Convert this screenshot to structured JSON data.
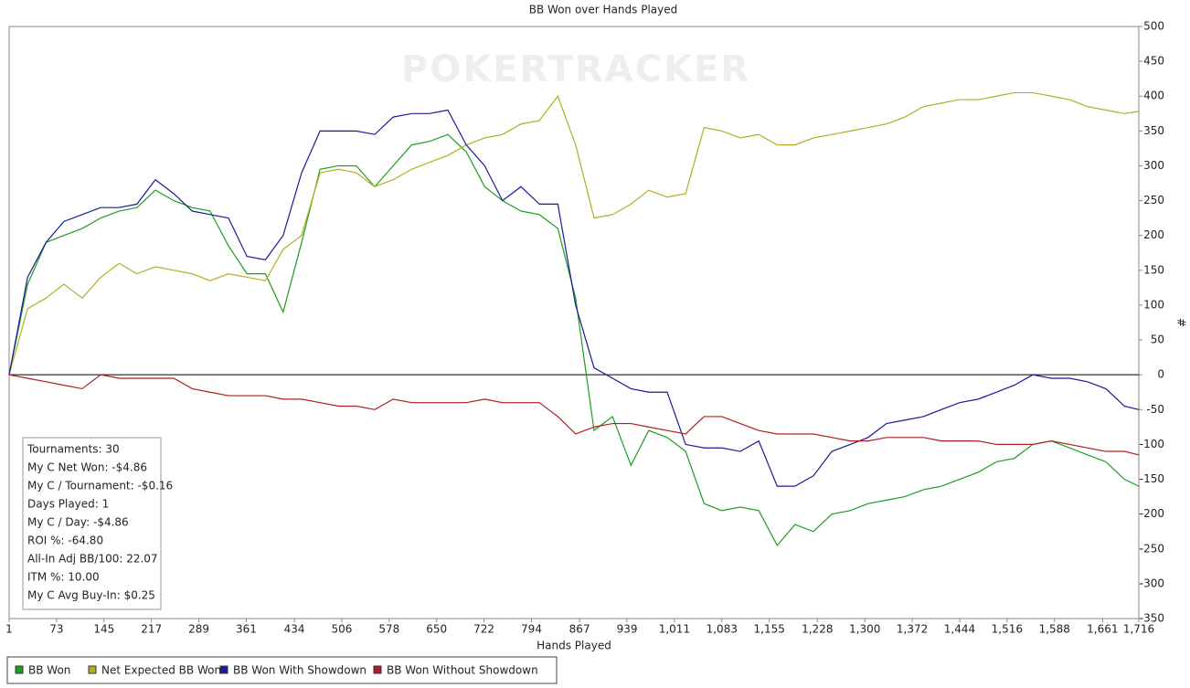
{
  "chart_data": {
    "type": "line",
    "title": "BB Won over Hands Played",
    "watermark": "POKERTRACKER",
    "x_label": "Hands Played",
    "y_label": "#",
    "xlim": [
      1,
      1716
    ],
    "ylim": [
      -350,
      500
    ],
    "xticks": [
      1,
      73,
      145,
      217,
      289,
      361,
      434,
      506,
      578,
      650,
      722,
      794,
      867,
      939,
      {
        "value": 1011,
        "label": "1,011"
      },
      {
        "value": 1083,
        "label": "1,083"
      },
      {
        "value": 1155,
        "label": "1,155"
      },
      {
        "value": 1228,
        "label": "1,228"
      },
      {
        "value": 1300,
        "label": "1,300"
      },
      {
        "value": 1372,
        "label": "1,372"
      },
      {
        "value": 1444,
        "label": "1,444"
      },
      {
        "value": 1516,
        "label": "1,516"
      },
      {
        "value": 1588,
        "label": "1,588"
      },
      {
        "value": 1661,
        "label": "1,661"
      },
      {
        "value": 1716,
        "label": "1,716"
      }
    ],
    "yticks": [
      -350,
      -300,
      -250,
      -200,
      -150,
      -100,
      -50,
      0,
      50,
      100,
      150,
      200,
      250,
      300,
      350,
      400,
      450,
      500
    ],
    "grid": false,
    "x": [
      1,
      29,
      57,
      84,
      112,
      140,
      168,
      195,
      223,
      251,
      279,
      306,
      334,
      362,
      390,
      417,
      445,
      473,
      501,
      528,
      556,
      584,
      612,
      639,
      667,
      695,
      723,
      750,
      778,
      806,
      834,
      861,
      889,
      917,
      945,
      972,
      1000,
      1028,
      1056,
      1083,
      1111,
      1139,
      1167,
      1194,
      1222,
      1250,
      1278,
      1305,
      1333,
      1361,
      1389,
      1416,
      1444,
      1472,
      1500,
      1527,
      1555,
      1583,
      1611,
      1638,
      1666,
      1694,
      1716
    ],
    "series": [
      {
        "name": "BB Won",
        "color": "#1e9e1e",
        "values": [
          0,
          130,
          190,
          200,
          210,
          225,
          235,
          240,
          265,
          250,
          240,
          235,
          185,
          145,
          145,
          90,
          190,
          295,
          300,
          300,
          270,
          300,
          330,
          335,
          345,
          320,
          270,
          250,
          235,
          230,
          210,
          110,
          -80,
          -60,
          -130,
          -80,
          -90,
          -110,
          -185,
          -195,
          -190,
          -195,
          -245,
          -215,
          -225,
          -200,
          -195,
          -185,
          -180,
          -175,
          -165,
          -160,
          -150,
          -140,
          -125,
          -120,
          -100,
          -95,
          -105,
          -115,
          -125,
          -150,
          -160
        ]
      },
      {
        "name": "Net Expected BB Won",
        "color": "#b3ae22",
        "values": [
          0,
          95,
          110,
          130,
          110,
          140,
          160,
          145,
          155,
          150,
          145,
          135,
          145,
          140,
          135,
          180,
          200,
          290,
          295,
          290,
          270,
          280,
          295,
          305,
          315,
          330,
          340,
          345,
          360,
          365,
          400,
          330,
          225,
          230,
          245,
          265,
          255,
          260,
          355,
          350,
          340,
          345,
          330,
          330,
          340,
          345,
          350,
          355,
          360,
          370,
          385,
          390,
          395,
          395,
          400,
          405,
          405,
          400,
          395,
          385,
          380,
          375,
          378
        ]
      },
      {
        "name": "BB Won With Showdown",
        "color": "#1a1a9c",
        "values": [
          0,
          140,
          190,
          220,
          230,
          240,
          240,
          245,
          280,
          260,
          235,
          230,
          225,
          170,
          165,
          200,
          290,
          350,
          350,
          350,
          345,
          370,
          375,
          375,
          380,
          330,
          300,
          250,
          270,
          245,
          245,
          100,
          10,
          -5,
          -20,
          -25,
          -25,
          -100,
          -105,
          -105,
          -110,
          -95,
          -160,
          -160,
          -145,
          -110,
          -100,
          -90,
          -70,
          -65,
          -60,
          -50,
          -40,
          -35,
          -25,
          -15,
          0,
          -5,
          -5,
          -10,
          -20,
          -45,
          -50
        ]
      },
      {
        "name": "BB Won Without Showdown",
        "color": "#b01e1e",
        "values": [
          0,
          -5,
          -10,
          -15,
          -20,
          0,
          -5,
          -5,
          -5,
          -5,
          -20,
          -25,
          -30,
          -30,
          -30,
          -35,
          -35,
          -40,
          -45,
          -45,
          -50,
          -35,
          -40,
          -40,
          -40,
          -40,
          -35,
          -40,
          -40,
          -40,
          -60,
          -85,
          -75,
          -70,
          -70,
          -75,
          -80,
          -85,
          -60,
          -60,
          -70,
          -80,
          -85,
          -85,
          -85,
          -90,
          -95,
          -95,
          -90,
          -90,
          -90,
          -95,
          -95,
          -95,
          -100,
          -100,
          -100,
          -95,
          -100,
          -105,
          -110,
          -110,
          -115
        ]
      }
    ],
    "stats": [
      "Tournaments: 30",
      "My C Net Won: -$4.86",
      "My C / Tournament: -$0.16",
      "Days Played: 1",
      "My C / Day: -$4.86",
      "ROI %: -64.80",
      "All-In Adj BB/100: 22.07",
      "ITM %: 10.00",
      "My C Avg Buy-In: $0.25"
    ]
  }
}
